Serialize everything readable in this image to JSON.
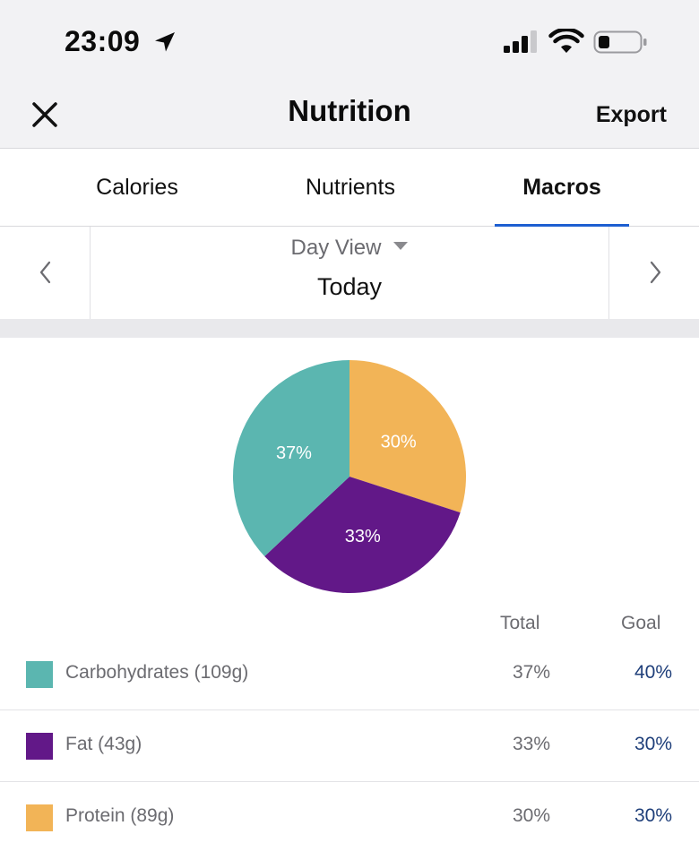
{
  "status": {
    "time": "23:09"
  },
  "nav": {
    "title": "Nutrition",
    "export_label": "Export"
  },
  "tabs": [
    {
      "label": "Calories",
      "active": false
    },
    {
      "label": "Nutrients",
      "active": false
    },
    {
      "label": "Macros",
      "active": true
    }
  ],
  "day": {
    "view_label": "Day View",
    "date_label": "Today"
  },
  "colors": {
    "carbs": "#5bb6b0",
    "fat": "#621888",
    "protein": "#f2b457",
    "accent": "#1d5fd1",
    "goal_text": "#1f3f7a"
  },
  "chart_data": {
    "type": "pie",
    "slices": [
      {
        "label": "Protein",
        "value": 30,
        "display": "30%",
        "color": "#f2b457"
      },
      {
        "label": "Fat",
        "value": 33,
        "display": "33%",
        "color": "#621888"
      },
      {
        "label": "Carbohydrates",
        "value": 37,
        "display": "37%",
        "color": "#5bb6b0"
      }
    ]
  },
  "table": {
    "headers": {
      "total": "Total",
      "goal": "Goal"
    },
    "rows": [
      {
        "label": "Carbohydrates (109g)",
        "total": "37%",
        "goal": "40%",
        "color": "#5bb6b0"
      },
      {
        "label": "Fat (43g)",
        "total": "33%",
        "goal": "30%",
        "color": "#621888"
      },
      {
        "label": "Protein (89g)",
        "total": "30%",
        "goal": "30%",
        "color": "#f2b457"
      }
    ]
  }
}
